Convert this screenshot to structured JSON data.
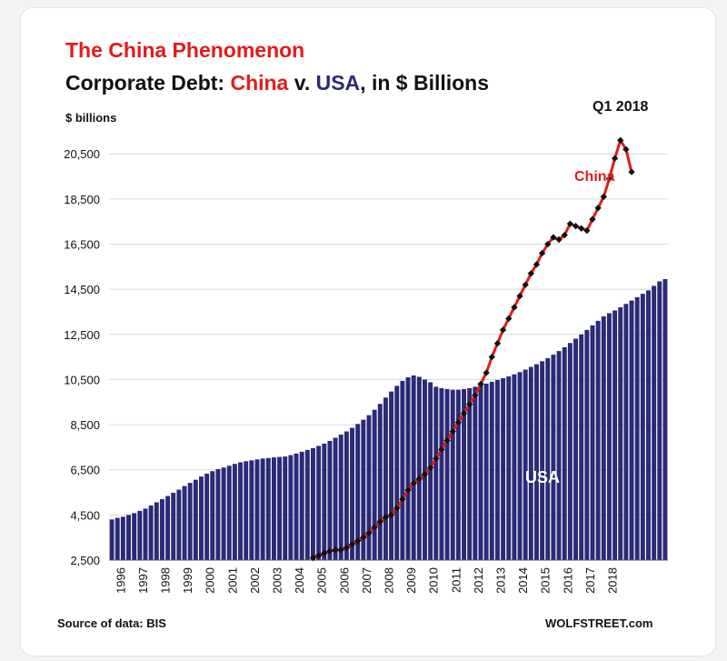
{
  "title": "The China Phenomenon",
  "subtitle_parts": [
    {
      "text": "Corporate Debt: ",
      "color": "#111111"
    },
    {
      "text": "China",
      "color": "#e21b1b"
    },
    {
      "text": " v. ",
      "color": "#111111"
    },
    {
      "text": "USA",
      "color": "#2b2a78"
    },
    {
      "text": ", in $ Billions",
      "color": "#111111"
    }
  ],
  "source": "Source of data: BIS",
  "brand": "WOLFSTREET.com",
  "chart_data": {
    "type": "bar+line",
    "ylabel": "$ billions",
    "ylim": [
      2500,
      22000
    ],
    "yticks": [
      2500,
      4500,
      6500,
      8500,
      10500,
      12500,
      14500,
      16500,
      18500,
      20500
    ],
    "ytick_labels": [
      "2,500",
      "4,500",
      "6,500",
      "8,500",
      "10,500",
      "12,500",
      "14,500",
      "16,500",
      "18,500",
      "20,500"
    ],
    "x_tick_labels": [
      "1996",
      "1997",
      "1998",
      "1999",
      "2000",
      "2001",
      "2002",
      "2003",
      "2004",
      "2005",
      "2006",
      "2007",
      "2008",
      "2009",
      "2010",
      "2011",
      "2012",
      "2013",
      "2014",
      "2015",
      "2016",
      "2017",
      "2018"
    ],
    "start_year": 1996,
    "usa_color": "#2b2a78",
    "china_color": "#e21b1b",
    "grid": true,
    "series": [
      {
        "name": "USA",
        "kind": "bar",
        "values": [
          4300,
          4370,
          4420,
          4500,
          4580,
          4680,
          4780,
          4920,
          5060,
          5200,
          5340,
          5480,
          5620,
          5780,
          5920,
          6060,
          6200,
          6330,
          6440,
          6530,
          6600,
          6680,
          6760,
          6830,
          6880,
          6920,
          6960,
          7000,
          7020,
          7050,
          7070,
          7090,
          7150,
          7220,
          7300,
          7380,
          7460,
          7560,
          7660,
          7780,
          7920,
          8060,
          8200,
          8360,
          8530,
          8720,
          8920,
          9160,
          9420,
          9700,
          9970,
          10220,
          10440,
          10600,
          10680,
          10620,
          10500,
          10380,
          10180,
          10120,
          10080,
          10050,
          10050,
          10080,
          10120,
          10180,
          10250,
          10320,
          10400,
          10480,
          10560,
          10640,
          10730,
          10830,
          10940,
          11060,
          11180,
          11310,
          11450,
          11600,
          11760,
          11930,
          12120,
          12310,
          12500,
          12700,
          12900,
          13100,
          13300,
          13440,
          13560,
          13700,
          13850,
          14000,
          14150,
          14300,
          14450,
          14650,
          14850,
          14950
        ]
      },
      {
        "name": "China",
        "kind": "line",
        "start_index": 36,
        "values": [
          2600,
          2700,
          2800,
          2900,
          2950,
          2950,
          3050,
          3200,
          3350,
          3500,
          3700,
          3950,
          4200,
          4400,
          4500,
          4800,
          5200,
          5600,
          5900,
          6100,
          6300,
          6600,
          7000,
          7400,
          7800,
          8200,
          8600,
          9000,
          9400,
          9800,
          10300,
          10800,
          11500,
          12100,
          12700,
          13200,
          13700,
          14200,
          14700,
          15200,
          15600,
          16100,
          16500,
          16800,
          16700,
          16900,
          17400,
          17300,
          17200,
          17100,
          17600,
          18100,
          18600,
          19400,
          20300,
          21100,
          20700,
          19700
        ]
      }
    ],
    "annotations": [
      {
        "text": "Q1 2018",
        "color": "#111111"
      },
      {
        "text": "China",
        "color": "#e21b1b"
      },
      {
        "text": "USA",
        "color": "#ffffff"
      }
    ]
  }
}
